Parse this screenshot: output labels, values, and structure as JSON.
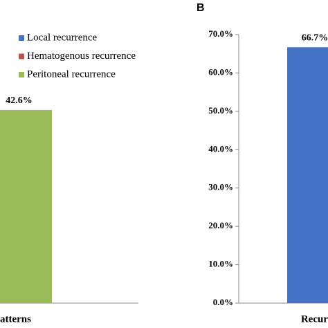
{
  "chart_data": [
    {
      "type": "bar",
      "categories": [
        "atterns"
      ],
      "series": [
        {
          "name": "Local recurrence",
          "color": "#4472c4",
          "values": [
            null
          ]
        },
        {
          "name": "Hematogenous recurrence",
          "color": "#c0504d",
          "values": [
            null
          ]
        },
        {
          "name": "Peritoneal recurrence",
          "color": "#9bbb59",
          "values": [
            42.6
          ],
          "value_labels": [
            "42.6%"
          ]
        }
      ],
      "ylim": [
        0,
        60
      ]
    },
    {
      "type": "bar",
      "title": "B",
      "categories": [
        "Recur"
      ],
      "values": [
        66.7
      ],
      "value_labels": [
        "66.7%"
      ],
      "color": "#4472c4",
      "ylim": [
        0,
        70
      ],
      "yticks": [
        {
          "value": 0,
          "label": "0.0%"
        },
        {
          "value": 10,
          "label": "10.0%"
        },
        {
          "value": 20,
          "label": "20.0%"
        },
        {
          "value": 30,
          "label": "30.0%"
        },
        {
          "value": 40,
          "label": "40.0%"
        },
        {
          "value": 50,
          "label": "50.0%"
        },
        {
          "value": 60,
          "label": "60.0%"
        },
        {
          "value": 70,
          "label": "70.0%"
        }
      ]
    }
  ]
}
